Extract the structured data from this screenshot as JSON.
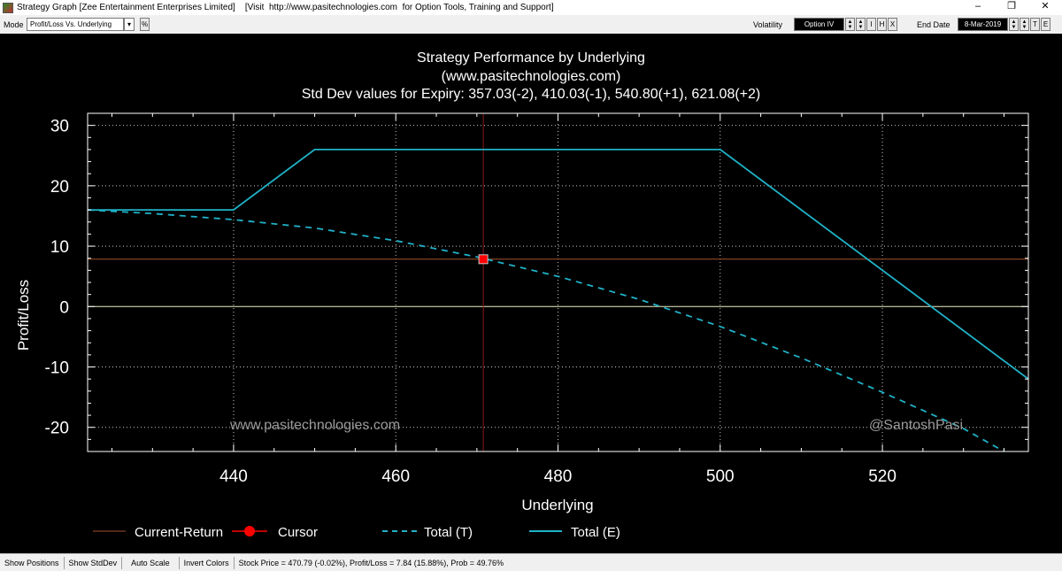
{
  "window": {
    "title": "Strategy Graph [Zee Entertainment Enterprises Limited]    [Visit  http://www.pasitechnologies.com  for Option Tools, Training and Support]",
    "minimize": "–",
    "maximize": "❐",
    "close": "✕"
  },
  "toolbar": {
    "mode_label": "Mode",
    "mode_value": "Profit/Loss Vs. Underlying",
    "pct_button": "%",
    "volatility_label": "Volatility",
    "volatility_value": "Option IV",
    "btn_i": "I",
    "btn_h": "H",
    "btn_x": "X",
    "end_date_label": "End Date",
    "end_date_value": "8-Mar-2019",
    "btn_t": "T",
    "btn_e": "E"
  },
  "chart_data": {
    "type": "line",
    "title": "Strategy Performance by Underlying",
    "subtitle": "(www.pasitechnologies.com)",
    "subtitle2": "Std Dev values for Expiry: 357.03(-2), 410.03(-1), 540.80(+1), 621.08(+2)",
    "xlabel": "Underlying",
    "ylabel": "Profit/Loss",
    "xlim": [
      422,
      538
    ],
    "ylim": [
      -24,
      32
    ],
    "x_ticks": [
      440,
      460,
      480,
      500,
      520
    ],
    "y_ticks": [
      30,
      20,
      10,
      0,
      -10,
      -20
    ],
    "grid": true,
    "legend_position": "bottom",
    "watermark_left": "www.pasitechnologies.com",
    "watermark_right": "@SantoshPasi",
    "current_return": 7.84,
    "cursor": {
      "x": 470.79,
      "y": 7.84
    },
    "colors": {
      "background": "#000000",
      "axis": "#ffffff",
      "grid": "#c8c8c8",
      "current_return": "#a0522d",
      "cursor": "#ff0000",
      "total_t": "#20b2c8",
      "total_e": "#20b2c8",
      "zero_line": "#f0f0c8"
    },
    "series": [
      {
        "name": "Total (T)",
        "style": "dashed",
        "x": [
          422,
          430,
          440,
          450,
          460,
          470,
          480,
          490,
          500,
          510,
          520,
          530,
          535
        ],
        "y": [
          16.0,
          15.4,
          14.4,
          13.0,
          10.9,
          8.2,
          5.0,
          1.2,
          -3.3,
          -8.5,
          -14.2,
          -20.2,
          -24.0
        ]
      },
      {
        "name": "Total (E)",
        "style": "solid",
        "x": [
          422,
          440,
          450,
          500,
          538
        ],
        "y": [
          16,
          16,
          26,
          26,
          -12
        ]
      }
    ],
    "legend": [
      {
        "label": "Current-Return",
        "kind": "line-thin"
      },
      {
        "label": "Cursor",
        "kind": "marker"
      },
      {
        "label": "Total (T)",
        "kind": "dashed"
      },
      {
        "label": "Total (E)",
        "kind": "solid"
      }
    ]
  },
  "status": {
    "show_positions": "Show Positions",
    "show_stddev": "Show StdDev",
    "auto_scale": "Auto Scale",
    "invert_colors": "Invert Colors",
    "info": "Stock Price = 470.79 (-0.02%), Profit/Loss = 7.84 (15.88%), Prob = 49.76%"
  }
}
